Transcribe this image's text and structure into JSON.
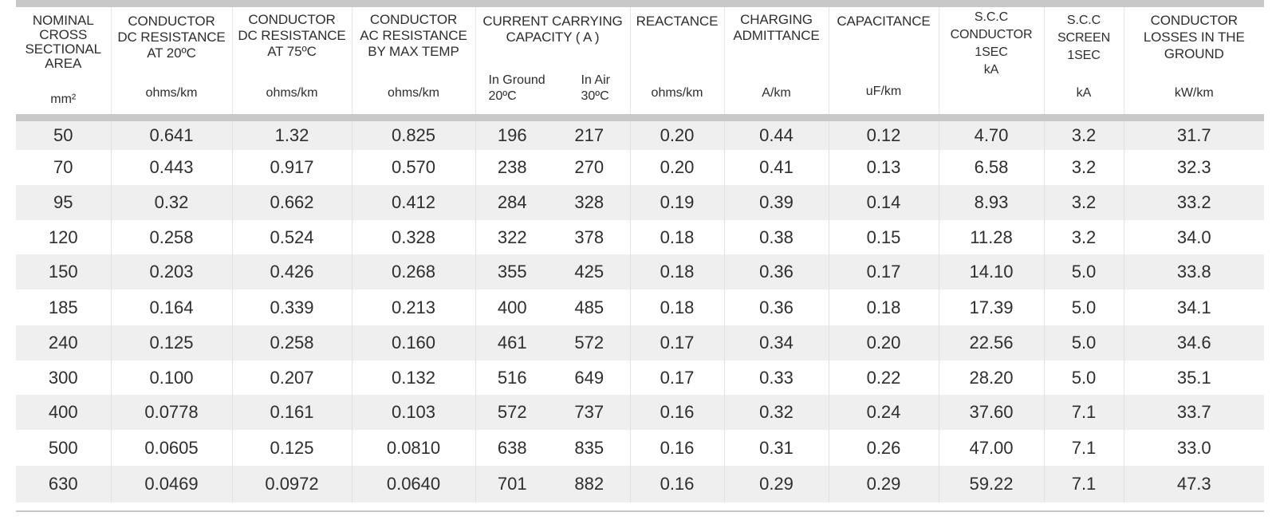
{
  "headers": [
    {
      "title": "NOMINAL\nCROSS\nSECTIONAL\nAREA",
      "unit": "mm²"
    },
    {
      "title": "CONDUCTOR\nDC RESISTANCE\nAT 20ºC",
      "unit": "ohms/km"
    },
    {
      "title": "CONDUCTOR\nDC RESISTANCE\nAT 75ºC",
      "unit": "ohms/km"
    },
    {
      "title": "CONDUCTOR\nAC RESISTANCE\nBY MAX TEMP",
      "unit": "ohms/km"
    },
    {
      "title": "CURRENT CARRYING\nCAPACITY ( A )",
      "sub_ground": "In Ground\n20ºC",
      "sub_air": "In Air\n30ºC"
    },
    {
      "title": "REACTANCE",
      "unit": "ohms/km"
    },
    {
      "title": "CHARGING\nADMITTANCE",
      "unit": "A/km"
    },
    {
      "title": "CAPACITANCE",
      "unit": "uF/km"
    },
    {
      "title": "S.C.C\nCONDUCTOR\n1SEC\nkA",
      "unit": ""
    },
    {
      "title": "S.C.C\nSCREEN\n1SEC",
      "unit": "kA"
    },
    {
      "title": "CONDUCTOR\nLOSSES IN THE\nGROUND",
      "unit": "kW/km"
    }
  ],
  "rows": [
    [
      "50",
      "0.641",
      "1.32",
      "0.825",
      "196",
      "217",
      "0.20",
      "0.44",
      "0.12",
      "4.70",
      "3.2",
      "31.7"
    ],
    [
      "70",
      "0.443",
      "0.917",
      "0.570",
      "238",
      "270",
      "0.20",
      "0.41",
      "0.13",
      "6.58",
      "3.2",
      "32.3"
    ],
    [
      "95",
      "0.32",
      "0.662",
      "0.412",
      "284",
      "328",
      "0.19",
      "0.39",
      "0.14",
      "8.93",
      "3.2",
      "33.2"
    ],
    [
      "120",
      "0.258",
      "0.524",
      "0.328",
      "322",
      "378",
      "0.18",
      "0.38",
      "0.15",
      "11.28",
      "3.2",
      "34.0"
    ],
    [
      "150",
      "0.203",
      "0.426",
      "0.268",
      "355",
      "425",
      "0.18",
      "0.36",
      "0.17",
      "14.10",
      "5.0",
      "33.8"
    ],
    [
      "185",
      "0.164",
      "0.339",
      "0.213",
      "400",
      "485",
      "0.18",
      "0.36",
      "0.18",
      "17.39",
      "5.0",
      "34.1"
    ],
    [
      "240",
      "0.125",
      "0.258",
      "0.160",
      "461",
      "572",
      "0.17",
      "0.34",
      "0.20",
      "22.56",
      "5.0",
      "34.6"
    ],
    [
      "300",
      "0.100",
      "0.207",
      "0.132",
      "516",
      "649",
      "0.17",
      "0.33",
      "0.22",
      "28.20",
      "5.0",
      "35.1"
    ],
    [
      "400",
      "0.0778",
      "0.161",
      "0.103",
      "572",
      "737",
      "0.16",
      "0.32",
      "0.24",
      "37.60",
      "7.1",
      "33.7"
    ],
    [
      "500",
      "0.0605",
      "0.125",
      "0.0810",
      "638",
      "835",
      "0.16",
      "0.31",
      "0.26",
      "47.00",
      "7.1",
      "33.0"
    ],
    [
      "630",
      "0.0469",
      "0.0972",
      "0.0640",
      "701",
      "882",
      "0.16",
      "0.29",
      "0.29",
      "59.22",
      "7.1",
      "47.3"
    ]
  ],
  "colors": {
    "band": "#c8c8c8",
    "shaded_row": "#efefef",
    "text": "#2e2e2e"
  }
}
